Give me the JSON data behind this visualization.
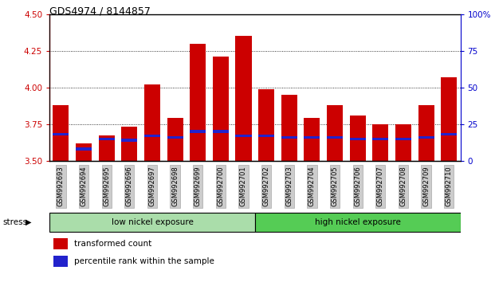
{
  "title": "GDS4974 / 8144857",
  "samples": [
    "GSM992693",
    "GSM992694",
    "GSM992695",
    "GSM992696",
    "GSM992697",
    "GSM992698",
    "GSM992699",
    "GSM992700",
    "GSM992701",
    "GSM992702",
    "GSM992703",
    "GSM992704",
    "GSM992705",
    "GSM992706",
    "GSM992707",
    "GSM992708",
    "GSM992709",
    "GSM992710"
  ],
  "transformed_count": [
    3.88,
    3.62,
    3.67,
    3.73,
    4.02,
    3.79,
    4.3,
    4.21,
    4.35,
    3.99,
    3.95,
    3.79,
    3.88,
    3.81,
    3.75,
    3.75,
    3.88,
    4.07
  ],
  "percentile_rank_pct": [
    18,
    8,
    15,
    14,
    17,
    16,
    20,
    20,
    17,
    17,
    16,
    16,
    16,
    15,
    15,
    15,
    16,
    18
  ],
  "ymin": 3.5,
  "ymax": 4.5,
  "yticks": [
    3.5,
    3.75,
    4.0,
    4.25,
    4.5
  ],
  "right_yticks_labels": [
    "0",
    "25",
    "50",
    "75",
    "100%"
  ],
  "right_yticks_vals": [
    0,
    25,
    50,
    75,
    100
  ],
  "bar_color": "#cc0000",
  "blue_color": "#2222cc",
  "bar_width": 0.7,
  "group1_label": "low nickel exposure",
  "group2_label": "high nickel exposure",
  "group1_color": "#aaddaa",
  "group2_color": "#55cc55",
  "group1_count": 9,
  "stress_label": "stress",
  "legend_red": "transformed count",
  "legend_blue": "percentile rank within the sample",
  "left_tick_color": "#cc0000",
  "right_tick_color": "#0000cc",
  "tick_label_bg": "#cccccc",
  "tick_label_edge": "#999999"
}
